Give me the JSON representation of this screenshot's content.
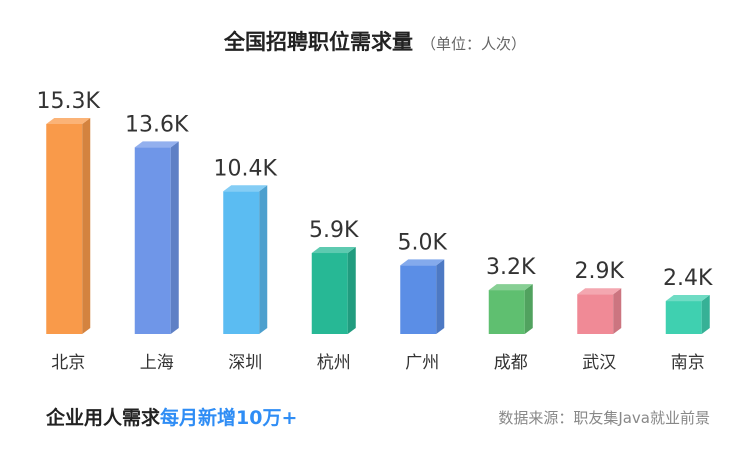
{
  "header": {
    "title": "全国招聘职位需求量",
    "unit": "（单位：人次）"
  },
  "chart_data": {
    "type": "bar",
    "title": "全国招聘职位需求量",
    "unit": "（单位：人次）",
    "categories": [
      "北京",
      "上海",
      "深圳",
      "杭州",
      "广州",
      "成都",
      "武汉",
      "南京"
    ],
    "values": [
      15300,
      13600,
      10400,
      5900,
      5000,
      3200,
      2900,
      2400
    ],
    "value_labels": [
      "15.3K",
      "13.6K",
      "10.4K",
      "5.9K",
      "5.0K",
      "3.2K",
      "2.9K",
      "2.4K"
    ],
    "ylim": [
      0,
      15300
    ],
    "grid": false,
    "legend": "none",
    "colors": [
      "#f99a4a",
      "#6f96e8",
      "#5bbcf2",
      "#27b895",
      "#5b8ee6",
      "#5fbf70",
      "#f08a96",
      "#3fd0b0"
    ]
  },
  "footer": {
    "slogan": "企业用人需求",
    "highlight": "每月新增10万+",
    "source": "数据来源：职友集Java就业前景"
  }
}
